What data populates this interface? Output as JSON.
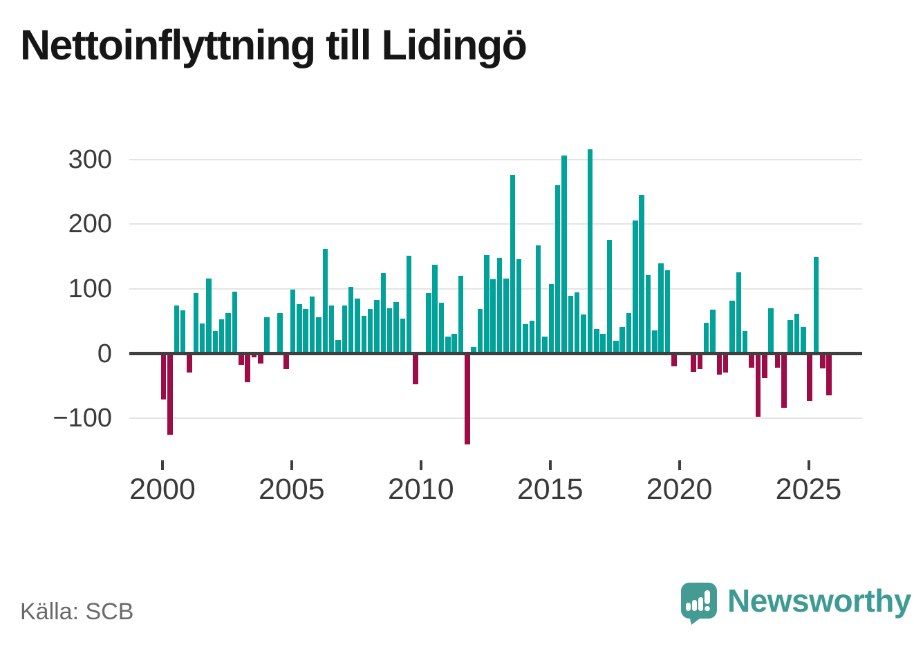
{
  "chart_data": {
    "type": "bar",
    "title": "Nettoinflyttning till Lidingö",
    "source": "Källa: SCB",
    "xlabel": "",
    "ylabel": "",
    "y_ticks": [
      300,
      200,
      100,
      0,
      -100
    ],
    "y_tick_labels": [
      "300",
      "200",
      "100",
      "0",
      "−100"
    ],
    "x_tick_labels": [
      "2000",
      "2005",
      "2010",
      "2015",
      "2020",
      "2025"
    ],
    "ylim": [
      -160,
      322
    ],
    "grid": "horizontal",
    "legend": "none",
    "positive_color": "#00a29a",
    "negative_color": "#9e0c47",
    "frequency": "quarterly",
    "series": [
      {
        "year": 2000,
        "values": [
          -71,
          -126,
          74,
          67
        ]
      },
      {
        "year": 2001,
        "values": [
          -29,
          93,
          46,
          116
        ]
      },
      {
        "year": 2002,
        "values": [
          35,
          53,
          63,
          96
        ]
      },
      {
        "year": 2003,
        "values": [
          -18,
          -44,
          -6,
          -15
        ]
      },
      {
        "year": 2004,
        "values": [
          56,
          3,
          63,
          -24
        ]
      },
      {
        "year": 2005,
        "values": [
          99,
          76,
          69,
          88
        ]
      },
      {
        "year": 2006,
        "values": [
          56,
          162,
          74,
          21
        ]
      },
      {
        "year": 2007,
        "values": [
          74,
          103,
          85,
          58
        ]
      },
      {
        "year": 2008,
        "values": [
          69,
          83,
          124,
          70
        ]
      },
      {
        "year": 2009,
        "values": [
          80,
          54,
          151,
          -48
        ]
      },
      {
        "year": 2010,
        "values": [
          0,
          94,
          137,
          79
        ]
      },
      {
        "year": 2011,
        "values": [
          26,
          30,
          120,
          -140
        ]
      },
      {
        "year": 2012,
        "values": [
          10,
          69,
          152,
          115
        ]
      },
      {
        "year": 2013,
        "values": [
          148,
          116,
          276,
          146
        ]
      },
      {
        "year": 2014,
        "values": [
          45,
          51,
          167,
          26
        ]
      },
      {
        "year": 2015,
        "values": [
          107,
          260,
          306,
          89
        ]
      },
      {
        "year": 2016,
        "values": [
          95,
          60,
          316,
          38
        ]
      },
      {
        "year": 2017,
        "values": [
          30,
          176,
          20,
          41
        ]
      },
      {
        "year": 2018,
        "values": [
          63,
          206,
          245,
          121
        ]
      },
      {
        "year": 2019,
        "values": [
          36,
          139,
          129,
          -20
        ]
      },
      {
        "year": 2020,
        "values": [
          0,
          2,
          -28,
          -24
        ]
      },
      {
        "year": 2021,
        "values": [
          48,
          68,
          -33,
          -29
        ]
      },
      {
        "year": 2022,
        "values": [
          82,
          126,
          35,
          -22
        ]
      },
      {
        "year": 2023,
        "values": [
          -98,
          -38,
          70,
          -22
        ]
      },
      {
        "year": 2024,
        "values": [
          -84,
          52,
          61,
          41
        ]
      },
      {
        "year": 2025,
        "values": [
          -73,
          149,
          -23,
          -65
        ]
      }
    ]
  },
  "brand": {
    "wordmark": "Newsworthy",
    "logo_color": "#449b94"
  }
}
